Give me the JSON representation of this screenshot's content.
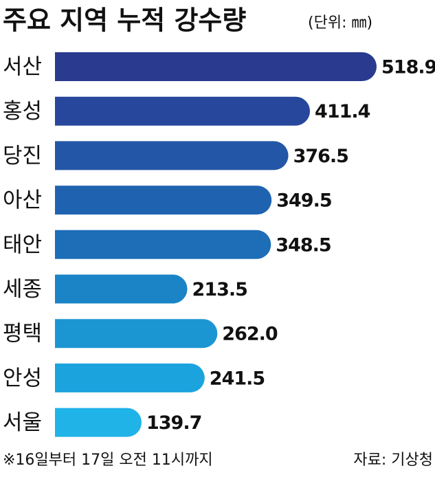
{
  "chart_data": {
    "type": "hbar",
    "title": "주요 지역 누적 강수량",
    "subtitle": "(단위: ㎜)",
    "categories": [
      "서산",
      "홍성",
      "당진",
      "아산",
      "태안",
      "세종",
      "평택",
      "안성",
      "서울"
    ],
    "values": [
      518.9,
      411.4,
      376.5,
      349.5,
      348.5,
      213.5,
      262.0,
      241.5,
      139.7
    ],
    "value_labels": [
      "518.9",
      "411.4",
      "376.5",
      "349.5",
      "348.5",
      "213.5",
      "262.0",
      "241.5",
      "139.7"
    ],
    "colors": [
      "#2a3a8f",
      "#26479b",
      "#2356a6",
      "#1f63b0",
      "#1d6db7",
      "#1a84c6",
      "#1c95d3",
      "#1ba3dd",
      "#20b3e8"
    ],
    "note": "※16일부터 17일 오전 11시까지",
    "source": "자료: 기상청"
  }
}
